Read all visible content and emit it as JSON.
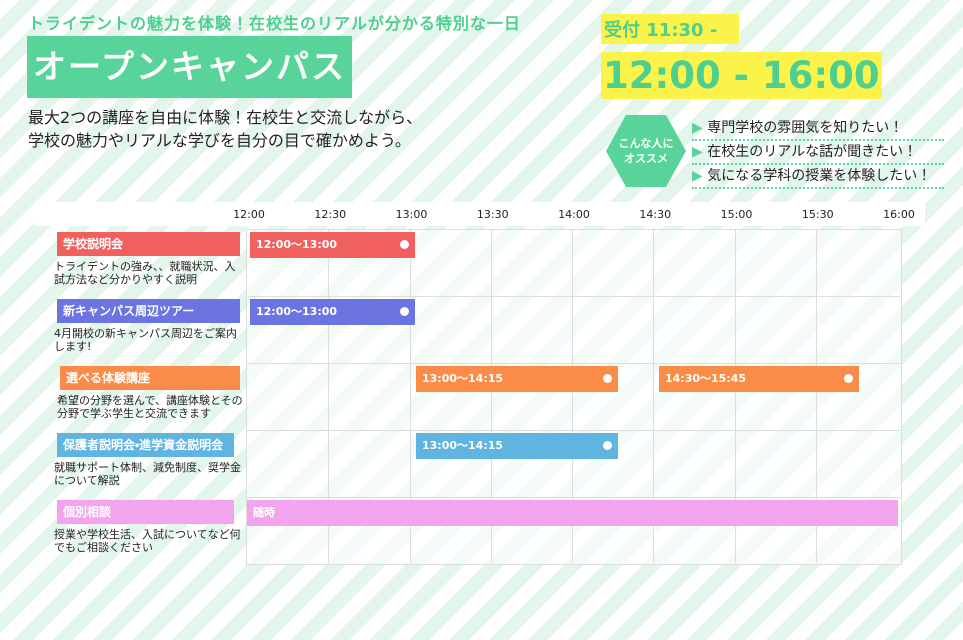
{
  "header": {
    "tagline": "トライデントの魅力を体験！在校生のリアルが分かる特別な一日",
    "title": "オープンキャンパス",
    "lead": [
      "最大2つの講座を自由に体験！在校生と交流しながら、",
      "学校の魅力やリアルな学びを自分の目で確かめよう。"
    ]
  },
  "time": {
    "reception": "受付 11:30 -",
    "hours": "12:00 - 16:00"
  },
  "recommend": {
    "badge": [
      "こんな人に",
      "オススメ"
    ],
    "items": [
      "専門学校の雰囲気を知りたい！",
      "在校生のリアルな話が聞きたい！",
      "気になる学科の授業を体験したい！"
    ]
  },
  "schedule": {
    "times": [
      "12:00",
      "12:30",
      "13:00",
      "13:30",
      "14:00",
      "14:30",
      "15:00",
      "15:30",
      "16:00"
    ],
    "rows": [
      {
        "name": "学校説明会",
        "description": "トライデントの強み、、就職状況、入試方法など分かりやすく説明",
        "sessions": [
          "12:00〜13:00"
        ]
      },
      {
        "name": "新キャンパス周辺ツアー",
        "description": "4月開校の新キャンパス周辺をご案内します!",
        "sessions": [
          "12:00〜13:00"
        ]
      },
      {
        "name": "選べる体験講座",
        "description": "希望の分野を選んで、講座体験とその分野で学ぶ学生と交流できます",
        "sessions": [
          "13:00〜14:15",
          "14:30〜15:45"
        ]
      },
      {
        "name": "保護者説明会・進学資金説明会",
        "description": "就職サポート体制、減免制度、奨学金について解説",
        "sessions": [
          "13:00〜14:15"
        ]
      },
      {
        "name": "個別相談",
        "description": "授業や学校生活、入試についてなど何でもご相談ください",
        "sessions": [
          "随時"
        ]
      }
    ]
  }
}
